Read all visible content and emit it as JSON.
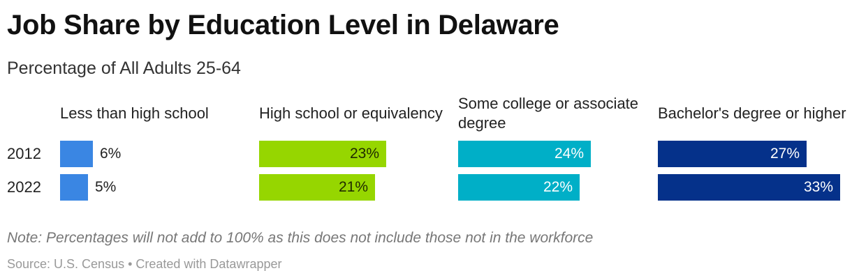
{
  "title": "Job Share by Education Level in Delaware",
  "subtitle": "Percentage of All Adults 25-64",
  "note": "Note: Percentages will not add to 100% as this does not include those not in the workforce",
  "source": "Source: U.S. Census • Created with Datawrapper",
  "chart_data": {
    "type": "bar",
    "orientation": "horizontal",
    "layout": "small-multiples",
    "categories": [
      "2012",
      "2022"
    ],
    "unit": "%",
    "series": [
      {
        "name": "Less than high school",
        "values": [
          6,
          5
        ],
        "labels": [
          "6%",
          "5%"
        ],
        "color": "#3a86e3"
      },
      {
        "name": "High school or equivalency",
        "values": [
          23,
          21
        ],
        "labels": [
          "23%",
          "21%"
        ],
        "color": "#96d600"
      },
      {
        "name": "Some college or associate degree",
        "values": [
          24,
          22
        ],
        "labels": [
          "24%",
          "22%"
        ],
        "color": "#00afc7"
      },
      {
        "name": "Bachelor's degree or higher",
        "values": [
          27,
          33
        ],
        "labels": [
          "27%",
          "33%"
        ],
        "color": "#05318a"
      }
    ],
    "xlim": [
      0,
      33
    ],
    "grid": false
  }
}
